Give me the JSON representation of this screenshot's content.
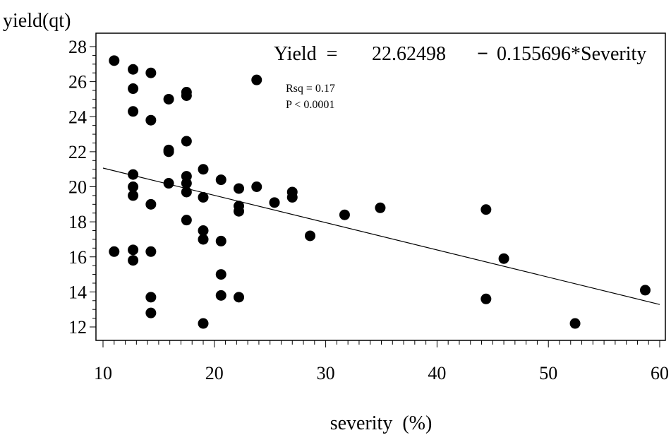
{
  "chart_data": {
    "type": "scatter",
    "ylabel": "yield(qt)",
    "xlabel": "severity  (%)",
    "xlim": [
      10,
      60
    ],
    "ylim": [
      12,
      28
    ],
    "x_ticks": [
      10,
      20,
      30,
      40,
      50,
      60
    ],
    "y_ticks": [
      12,
      14,
      16,
      18,
      20,
      22,
      24,
      26,
      28
    ],
    "equation": {
      "lhs": "Yield  =",
      "intercept": "22.62498",
      "operator": "−",
      "slope_term": "0.155696*Severity"
    },
    "fit_line": {
      "intercept": 22.62498,
      "slope": -0.155696
    },
    "annotations": [
      "Rsq = 0.17",
      "P < 0.0001"
    ],
    "grid": false,
    "points": [
      {
        "x": 11.0,
        "y": 27.2
      },
      {
        "x": 11.0,
        "y": 16.3
      },
      {
        "x": 12.7,
        "y": 26.7
      },
      {
        "x": 12.7,
        "y": 25.6
      },
      {
        "x": 12.7,
        "y": 24.3
      },
      {
        "x": 12.7,
        "y": 20.7
      },
      {
        "x": 12.7,
        "y": 20.0
      },
      {
        "x": 12.7,
        "y": 19.5
      },
      {
        "x": 12.7,
        "y": 16.4
      },
      {
        "x": 12.7,
        "y": 15.8
      },
      {
        "x": 14.3,
        "y": 26.5
      },
      {
        "x": 14.3,
        "y": 23.8
      },
      {
        "x": 14.3,
        "y": 19.0
      },
      {
        "x": 14.3,
        "y": 16.3
      },
      {
        "x": 14.3,
        "y": 13.7
      },
      {
        "x": 14.3,
        "y": 12.8
      },
      {
        "x": 15.9,
        "y": 25.0
      },
      {
        "x": 15.9,
        "y": 22.1
      },
      {
        "x": 15.9,
        "y": 22.0
      },
      {
        "x": 15.9,
        "y": 20.2
      },
      {
        "x": 17.5,
        "y": 25.4
      },
      {
        "x": 17.5,
        "y": 25.2
      },
      {
        "x": 17.5,
        "y": 22.6
      },
      {
        "x": 17.5,
        "y": 20.6
      },
      {
        "x": 17.5,
        "y": 20.2
      },
      {
        "x": 17.5,
        "y": 19.7
      },
      {
        "x": 17.5,
        "y": 18.1
      },
      {
        "x": 19.0,
        "y": 21.0
      },
      {
        "x": 19.0,
        "y": 19.4
      },
      {
        "x": 19.0,
        "y": 17.5
      },
      {
        "x": 19.0,
        "y": 17.0
      },
      {
        "x": 19.0,
        "y": 12.2
      },
      {
        "x": 20.6,
        "y": 20.4
      },
      {
        "x": 20.6,
        "y": 16.9
      },
      {
        "x": 20.6,
        "y": 15.0
      },
      {
        "x": 20.6,
        "y": 13.8
      },
      {
        "x": 22.2,
        "y": 19.9
      },
      {
        "x": 22.2,
        "y": 18.9
      },
      {
        "x": 22.2,
        "y": 18.6
      },
      {
        "x": 22.2,
        "y": 13.7
      },
      {
        "x": 23.8,
        "y": 26.1
      },
      {
        "x": 23.8,
        "y": 20.0
      },
      {
        "x": 25.4,
        "y": 19.1
      },
      {
        "x": 27.0,
        "y": 19.7
      },
      {
        "x": 27.0,
        "y": 19.4
      },
      {
        "x": 28.6,
        "y": 17.2
      },
      {
        "x": 31.7,
        "y": 18.4
      },
      {
        "x": 34.9,
        "y": 18.8
      },
      {
        "x": 44.4,
        "y": 18.7
      },
      {
        "x": 44.4,
        "y": 13.6
      },
      {
        "x": 46.0,
        "y": 15.9
      },
      {
        "x": 52.4,
        "y": 12.2
      },
      {
        "x": 58.7,
        "y": 14.1
      }
    ]
  }
}
